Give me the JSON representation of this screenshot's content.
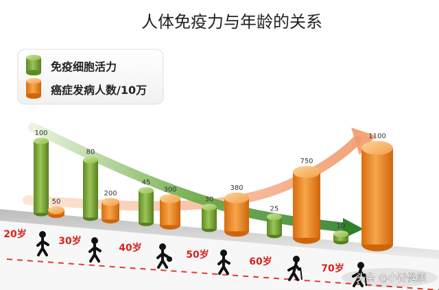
{
  "chart_data": {
    "type": "bar",
    "title": "人体免疫力与年龄的关系",
    "categories": [
      "20岁",
      "30岁",
      "40岁",
      "50岁",
      "60岁",
      "70岁"
    ],
    "series": [
      {
        "name": "免疫细胞活力",
        "color": "#7fa83a",
        "values": [
          100,
          80,
          45,
          30,
          25,
          10
        ]
      },
      {
        "name": "癌症发病人数/10万",
        "color": "#ef8a22",
        "values": [
          50,
          200,
          300,
          380,
          750,
          1100
        ]
      }
    ],
    "trend_arrows": [
      {
        "series": "免疫细胞活力",
        "direction": "decreasing",
        "color": "#3d8a2a"
      },
      {
        "series": "癌症发病人数/10万",
        "direction": "increasing",
        "color": "#f6b48a"
      }
    ],
    "legend_position": "top-left",
    "grid": false
  },
  "watermark": "头条 @小番健康",
  "colors": {
    "age_label": "#d8221c",
    "floor": "#d9d9d9",
    "floor_dash": "#e0392b"
  }
}
